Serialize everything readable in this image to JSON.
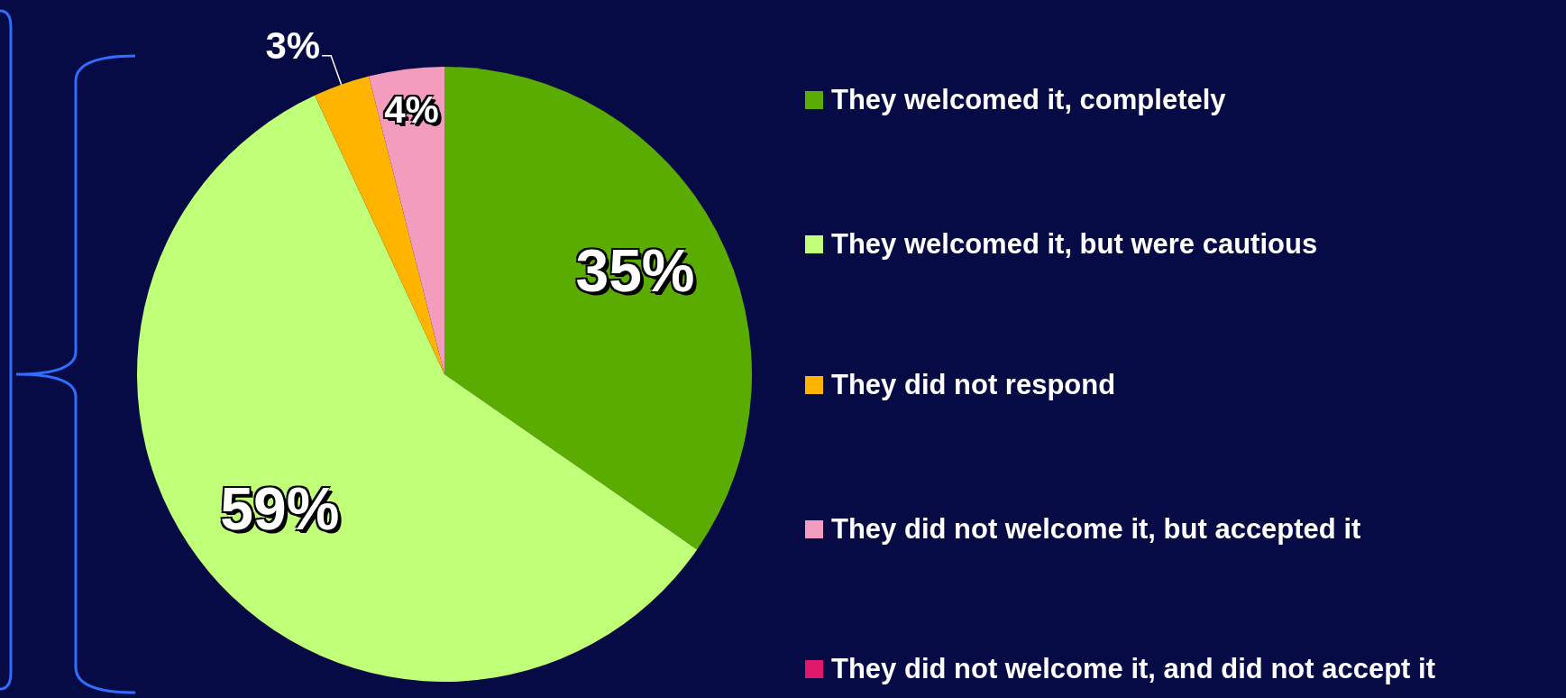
{
  "chart_data": {
    "type": "pie",
    "categories": [
      "They welcomed it, completely",
      "They welcomed it, but were cautious",
      "They did not respond",
      "They did not welcome it, but accepted it",
      "They did not welcome it, and did not accept it"
    ],
    "values": [
      35,
      59,
      3,
      4,
      0
    ],
    "colors": [
      "#5aac00",
      "#c0ff78",
      "#ffb400",
      "#f49cbd",
      "#e0186c"
    ],
    "value_labels": [
      "35%",
      "59%",
      "3%",
      "4%",
      null
    ],
    "legend": "right"
  }
}
